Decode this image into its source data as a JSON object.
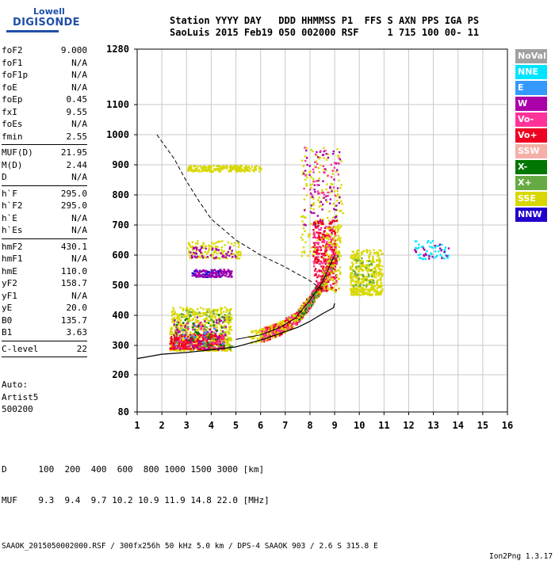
{
  "logo": {
    "line1": "Lowell",
    "line2": "DIGISONDE"
  },
  "header": {
    "labels": "Station YYYY DAY   DDD HHMMSS P1  FFS S AXN PPS IGA PS",
    "values": "SaoLuis 2015 Feb19 050 002000 RSF     1 715 100 00- 11"
  },
  "params": [
    {
      "name": "foF2",
      "value": "9.000"
    },
    {
      "name": "foF1",
      "value": "N/A"
    },
    {
      "name": "foF1p",
      "value": "N/A"
    },
    {
      "name": "foE",
      "value": "N/A"
    },
    {
      "name": "foEp",
      "value": "0.45"
    },
    {
      "name": "fxI",
      "value": "9.55"
    },
    {
      "name": "foEs",
      "value": "N/A"
    },
    {
      "name": "fmin",
      "value": "2.55"
    },
    {
      "sep": true
    },
    {
      "name": "MUF(D)",
      "value": "21.95"
    },
    {
      "name": "M(D)",
      "value": "2.44"
    },
    {
      "name": "D",
      "value": "N/A"
    },
    {
      "sep": true
    },
    {
      "name": "h`F",
      "value": "295.0"
    },
    {
      "name": "h`F2",
      "value": "295.0"
    },
    {
      "name": "h`E",
      "value": "N/A"
    },
    {
      "name": "h`Es",
      "value": "N/A"
    },
    {
      "sep": true
    },
    {
      "name": "hmF2",
      "value": "430.1"
    },
    {
      "name": "hmF1",
      "value": "N/A"
    },
    {
      "name": "hmE",
      "value": "110.0"
    },
    {
      "name": "yF2",
      "value": "158.7"
    },
    {
      "name": "yF1",
      "value": "N/A"
    },
    {
      "name": "yE",
      "value": "20.0"
    },
    {
      "name": "B0",
      "value": "135.7"
    },
    {
      "name": "B1",
      "value": "3.63"
    },
    {
      "sep": true
    },
    {
      "name": "C-level",
      "value": "22"
    },
    {
      "sep": true
    }
  ],
  "auto": {
    "line1": "Auto:",
    "line2": "Artist5",
    "line3": "500200"
  },
  "footer": {
    "d_row": "D      100  200  400  600  800 1000 1500 3000 [km]",
    "muf_row": "MUF    9.3  9.4  9.7 10.2 10.9 11.9 14.8 22.0 [MHz]",
    "info": "SAAOK_2015050002000.RSF / 300fx256h 50 kHz 5.0 km / DPS-4 SAAOK 903 / 2.6 S 315.8 E",
    "version": "Ion2Png 1.3.17"
  },
  "legend": [
    {
      "label": "NoVal",
      "color": "#a0a0a0"
    },
    {
      "label": "NNE",
      "color": "#00e5ff"
    },
    {
      "label": "E",
      "color": "#3399ff"
    },
    {
      "label": "W",
      "color": "#aa00aa"
    },
    {
      "label": "Vo-",
      "color": "#ff3399"
    },
    {
      "label": "Vo+",
      "color": "#ee0022"
    },
    {
      "label": "SSW",
      "color": "#f4b0a8"
    },
    {
      "label": "X-",
      "color": "#007700"
    },
    {
      "label": "X+",
      "color": "#66aa44"
    },
    {
      "label": "SSE",
      "color": "#d8d800"
    },
    {
      "label": "NNW",
      "color": "#2200cc"
    }
  ],
  "chart_data": {
    "type": "scatter",
    "xlim": [
      1,
      16
    ],
    "ylim": [
      80,
      1280
    ],
    "x_ticks": [
      1,
      2,
      3,
      4,
      5,
      6,
      7,
      8,
      9,
      10,
      11,
      12,
      13,
      14,
      15,
      16
    ],
    "y_ticks": [
      80,
      200,
      300,
      400,
      500,
      600,
      700,
      800,
      900,
      1000,
      1100,
      1280
    ],
    "grid": true,
    "legend_placement": "right",
    "clusters": [
      {
        "color": "#d8d800",
        "x": [
          2.3,
          4.8
        ],
        "y": [
          285,
          430
        ],
        "n": 700
      },
      {
        "color": "#ee0022",
        "x": [
          2.3,
          4.5
        ],
        "y": [
          290,
          340
        ],
        "n": 260
      },
      {
        "color": "#ff3399",
        "x": [
          2.5,
          4.5
        ],
        "y": [
          290,
          380
        ],
        "n": 80
      },
      {
        "color": "#aa00aa",
        "x": [
          2.4,
          4.6
        ],
        "y": [
          285,
          400
        ],
        "n": 60
      },
      {
        "color": "#007700",
        "x": [
          2.5,
          4.5
        ],
        "y": [
          300,
          410
        ],
        "n": 40
      },
      {
        "color": "#66aa44",
        "x": [
          2.5,
          4.8
        ],
        "y": [
          290,
          420
        ],
        "n": 60
      },
      {
        "color": "#3399ff",
        "x": [
          2.5,
          4.5
        ],
        "y": [
          300,
          380
        ],
        "n": 15
      },
      {
        "color": "#d8d800",
        "x": [
          3.0,
          5.2
        ],
        "y": [
          592,
          650
        ],
        "n": 120
      },
      {
        "color": "#aa00aa",
        "x": [
          3.0,
          5.0
        ],
        "y": [
          592,
          630
        ],
        "n": 50
      },
      {
        "color": "#2200cc",
        "x": [
          3.2,
          4.8
        ],
        "y": [
          530,
          552
        ],
        "n": 70
      },
      {
        "color": "#aa00aa",
        "x": [
          3.2,
          4.8
        ],
        "y": [
          530,
          555
        ],
        "n": 80
      },
      {
        "color": "#d8d800",
        "x": [
          9.6,
          10.9
        ],
        "y": [
          470,
          620
        ],
        "n": 420
      },
      {
        "color": "#66aa44",
        "x": [
          9.7,
          10.6
        ],
        "y": [
          500,
          600
        ],
        "n": 40
      },
      {
        "color": "#d8d800",
        "x": [
          7.6,
          9.3
        ],
        "y": [
          600,
          960
        ],
        "n": 180
      },
      {
        "color": "#aa00aa",
        "x": [
          7.7,
          9.2
        ],
        "y": [
          700,
          960
        ],
        "n": 70
      },
      {
        "color": "#ff3399",
        "x": [
          7.7,
          9.2
        ],
        "y": [
          800,
          960
        ],
        "n": 40
      },
      {
        "color": "#00e5ff",
        "x": [
          12.2,
          13.6
        ],
        "y": [
          590,
          650
        ],
        "n": 50
      },
      {
        "color": "#aa00aa",
        "x": [
          12.2,
          13.6
        ],
        "y": [
          590,
          650
        ],
        "n": 20
      }
    ],
    "curve_clusters": [
      {
        "color": "#ee0022",
        "x": [
          6.0,
          9.0
        ],
        "n": 500
      },
      {
        "color": "#d8d800",
        "x": [
          5.5,
          9.2
        ],
        "n": 250
      },
      {
        "color": "#ff3399",
        "x": [
          6.0,
          9.0
        ],
        "n": 80
      },
      {
        "color": "#007700",
        "x": [
          7.5,
          9.1
        ],
        "n": 40
      },
      {
        "color": "#66aa44",
        "x": [
          7.5,
          9.1
        ],
        "n": 40
      }
    ],
    "edge_band": [
      {
        "color": "#ee0022",
        "x": [
          8.1,
          9.05
        ],
        "y": [
          480,
          720
        ],
        "n": 260
      },
      {
        "color": "#ff3399",
        "x": [
          8.1,
          9.05
        ],
        "y": [
          480,
          700
        ],
        "n": 80
      },
      {
        "color": "#d8d800",
        "x": [
          8.5,
          9.2
        ],
        "y": [
          480,
          700
        ],
        "n": 100
      }
    ],
    "ssw_band": {
      "color": "#d8d800",
      "x": [
        3.0,
        6.0
      ],
      "y": 890,
      "n": 200
    },
    "trace_line": [
      [
        5.0,
        320
      ],
      [
        6.0,
        335
      ],
      [
        6.8,
        360
      ],
      [
        7.4,
        390
      ],
      [
        8.0,
        450
      ],
      [
        8.5,
        510
      ],
      [
        9.0,
        600
      ]
    ],
    "dashed_curve": [
      [
        1.8,
        1000
      ],
      [
        2.5,
        920
      ],
      [
        3.0,
        845
      ],
      [
        3.5,
        780
      ],
      [
        4.0,
        720
      ],
      [
        5.0,
        650
      ],
      [
        6.0,
        600
      ],
      [
        7.0,
        560
      ],
      [
        8.0,
        515
      ],
      [
        8.6,
        480
      ]
    ],
    "solid_curve": [
      [
        1.0,
        255
      ],
      [
        2.0,
        270
      ],
      [
        3.0,
        276
      ],
      [
        4.0,
        285
      ],
      [
        5.0,
        295
      ],
      [
        6.0,
        318
      ],
      [
        6.8,
        340
      ],
      [
        7.5,
        360
      ],
      [
        8.0,
        380
      ],
      [
        8.5,
        405
      ],
      [
        8.95,
        425
      ],
      [
        9.0,
        440
      ]
    ]
  }
}
